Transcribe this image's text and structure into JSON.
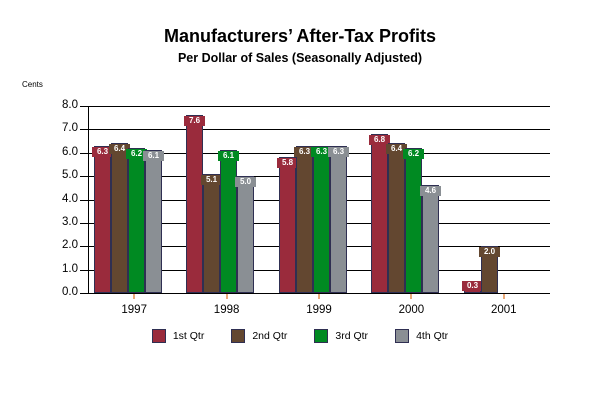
{
  "title": "Manufacturers’ After-Tax Profits",
  "subtitle": "Per Dollar of Sales (Seasonally Adjusted)",
  "units_label": "Cents",
  "chart_data": {
    "type": "bar",
    "title": "Manufacturers’ After-Tax Profits",
    "subtitle": "Per Dollar of Sales (Seasonally Adjusted)",
    "ylabel": "Cents",
    "xlabel": "",
    "categories": [
      "1997",
      "1998",
      "1999",
      "2000",
      "2001"
    ],
    "series": [
      {
        "name": "1st Qtr",
        "color": "#9A2B3C",
        "values": [
          6.3,
          7.6,
          5.8,
          6.8,
          0.3
        ]
      },
      {
        "name": "2nd Qtr",
        "color": "#634730",
        "values": [
          6.4,
          5.1,
          6.3,
          6.4,
          2.0
        ]
      },
      {
        "name": "3rd Qtr",
        "color": "#008A22",
        "values": [
          6.2,
          6.1,
          6.3,
          6.2,
          null
        ]
      },
      {
        "name": "4th Qtr",
        "color": "#8A8F94",
        "values": [
          6.1,
          5.0,
          6.3,
          4.6,
          null
        ]
      }
    ],
    "ylim": [
      0,
      8
    ],
    "ytick_step": 1.0,
    "ytick_labels": [
      "0.0",
      "1.0",
      "2.0",
      "3.0",
      "4.0",
      "5.0",
      "6.0",
      "7.0",
      "8.0"
    ],
    "grid": true,
    "bar_value_labels_shown": true,
    "legend_position": "bottom",
    "bar_border_color": "#2F2F52",
    "category_tick_color": "#EBAA78",
    "axis_color": "#000000",
    "value_label_text_color": "#FFFFFF"
  }
}
